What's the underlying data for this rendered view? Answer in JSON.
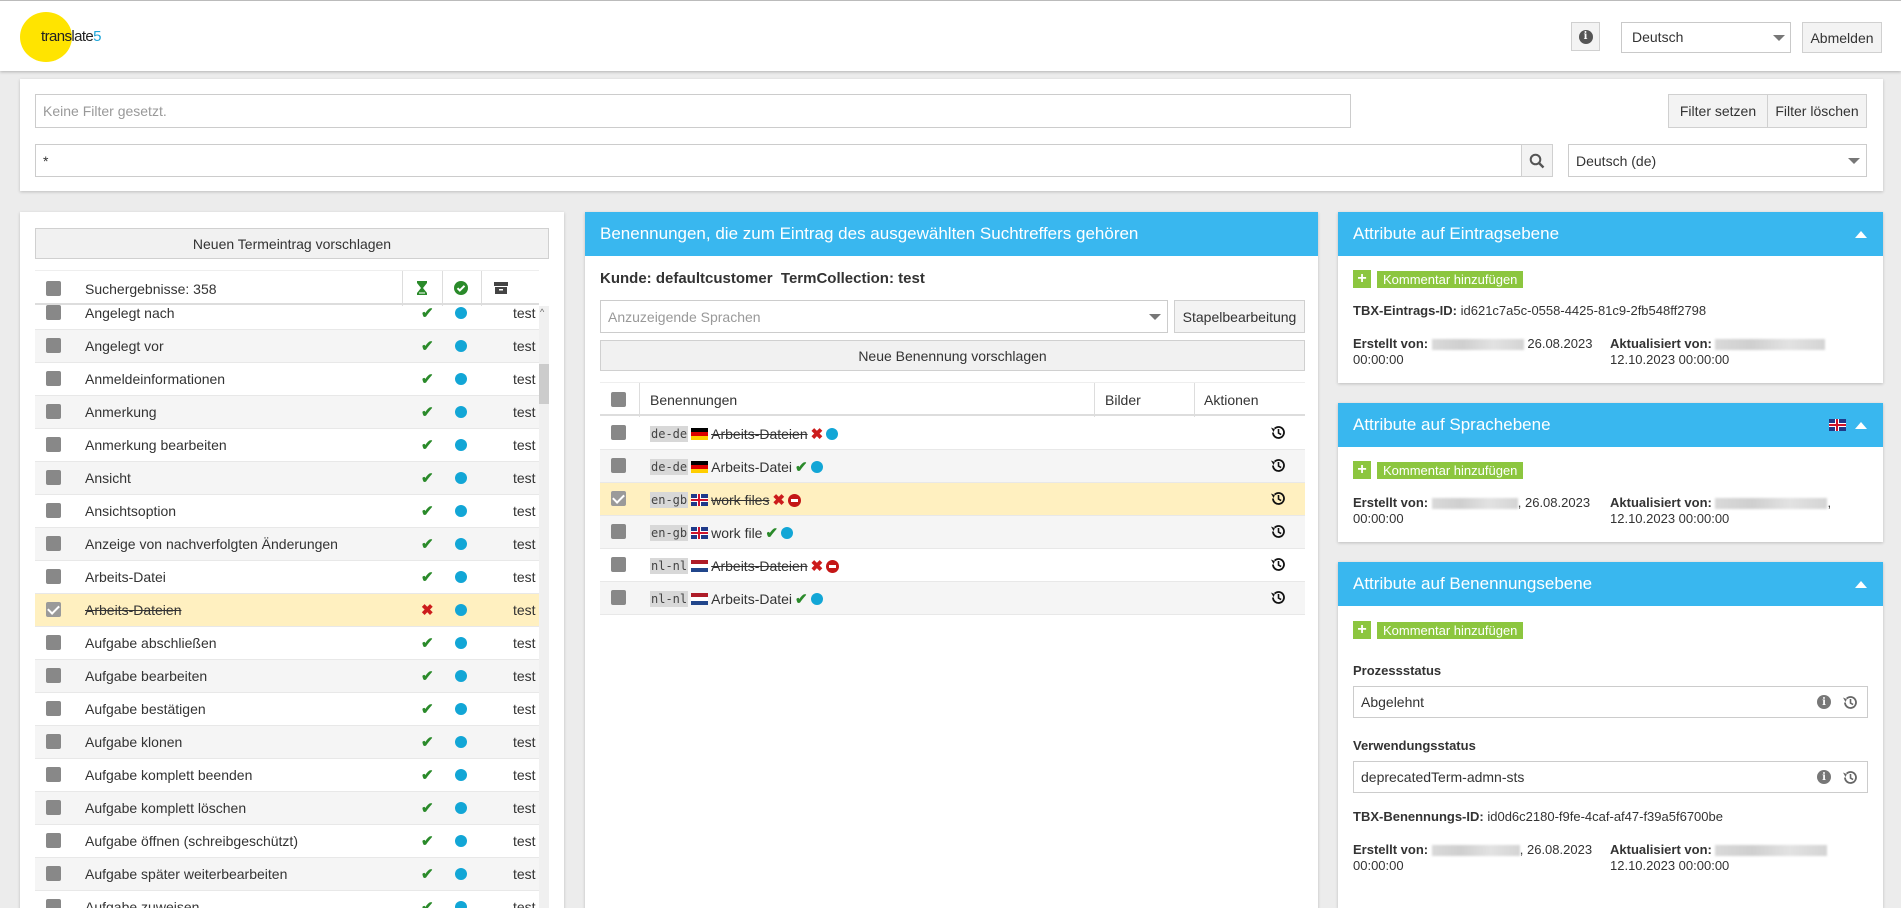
{
  "app": {
    "logo_text": "translate",
    "logo_digit": "5"
  },
  "header": {
    "language": "Deutsch",
    "logout": "Abmelden"
  },
  "filter": {
    "placeholder": "Keine Filter gesetzt.",
    "set_label": "Filter setzen",
    "clear_label": "Filter löschen",
    "search_value": "*",
    "search_lang": "Deutsch (de)"
  },
  "results": {
    "propose_button": "Neuen Termeintrag vorschlagen",
    "header": "Suchergebnisse: 358",
    "rows": [
      {
        "label": "Angelegt nach",
        "status": "ok",
        "coll": "test"
      },
      {
        "label": "Angelegt vor",
        "status": "ok",
        "coll": "test"
      },
      {
        "label": "Anmeldeinformationen",
        "status": "ok",
        "coll": "test"
      },
      {
        "label": "Anmerkung",
        "status": "ok",
        "coll": "test"
      },
      {
        "label": "Anmerkung bearbeiten",
        "status": "ok",
        "coll": "test"
      },
      {
        "label": "Ansicht",
        "status": "ok",
        "coll": "test"
      },
      {
        "label": "Ansichtsoption",
        "status": "ok",
        "coll": "test"
      },
      {
        "label": "Anzeige von nachverfolgten Änderungen",
        "status": "ok",
        "coll": "test"
      },
      {
        "label": "Arbeits-Datei",
        "status": "ok",
        "coll": "test"
      },
      {
        "label": "Arbeits-Dateien",
        "status": "rejected",
        "coll": "test"
      },
      {
        "label": "Aufgabe abschließen",
        "status": "ok",
        "coll": "test"
      },
      {
        "label": "Aufgabe bearbeiten",
        "status": "ok",
        "coll": "test"
      },
      {
        "label": "Aufgabe bestätigen",
        "status": "ok",
        "coll": "test"
      },
      {
        "label": "Aufgabe klonen",
        "status": "ok",
        "coll": "test"
      },
      {
        "label": "Aufgabe komplett beenden",
        "status": "ok",
        "coll": "test"
      },
      {
        "label": "Aufgabe komplett löschen",
        "status": "ok",
        "coll": "test"
      },
      {
        "label": "Aufgabe öffnen (schreibgeschützt)",
        "status": "ok",
        "coll": "test"
      },
      {
        "label": "Aufgabe später weiterbearbeiten",
        "status": "ok",
        "coll": "test"
      },
      {
        "label": "Aufgabe zuweisen",
        "status": "ok",
        "coll": "test"
      }
    ]
  },
  "terms": {
    "title": "Benennungen, die zum Eintrag des ausgewählten Suchtreffers gehören",
    "customer_label": "Kunde:",
    "customer": "defaultcustomer",
    "collection_label": "TermCollection:",
    "collection": "test",
    "lang_placeholder": "Anzuzeigende Sprachen",
    "batch_label": "Stapelbearbeitung",
    "propose_button": "Neue Benennung vorschlagen",
    "col_terms": "Benennungen",
    "col_images": "Bilder",
    "col_actions": "Aktionen",
    "rows": [
      {
        "lang": "de-de",
        "flag": "de",
        "term": "Arbeits-Dateien",
        "rejected": true
      },
      {
        "lang": "de-de",
        "flag": "de",
        "term": "Arbeits-Datei",
        "rejected": false
      },
      {
        "lang": "en-gb",
        "flag": "gb",
        "term": "work files",
        "rejected": true
      },
      {
        "lang": "en-gb",
        "flag": "gb",
        "term": "work file",
        "rejected": false
      },
      {
        "lang": "nl-nl",
        "flag": "nl",
        "term": "Arbeits-Dateien",
        "rejected": true
      },
      {
        "lang": "nl-nl",
        "flag": "nl",
        "term": "Arbeits-Datei",
        "rejected": false
      }
    ]
  },
  "entry_attrs": {
    "title": "Attribute auf Eintragsebene",
    "add_comment": "Kommentar hinzufügen",
    "id_label": "TBX-Eintrags-ID:",
    "id_value": "id621c7a5c-0558-4425-81c9-2fb548ff2798",
    "created_label": "Erstellt von:",
    "created_date": "26.08.2023",
    "created_time": "00:00:00",
    "updated_label": "Aktualisiert von:",
    "updated_date": "12.10.2023 00:00:00"
  },
  "lang_attrs": {
    "title": "Attribute auf Sprachebene",
    "add_comment": "Kommentar hinzufügen",
    "created_label": "Erstellt von:",
    "created_date": "26.08.2023",
    "created_time": "00:00:00",
    "updated_label": "Aktualisiert von:",
    "updated_date": "12.10.2023 00:00:00"
  },
  "term_attrs": {
    "title": "Attribute auf Benennungsebene",
    "add_comment": "Kommentar hinzufügen",
    "process_label": "Prozessstatus",
    "process_value": "Abgelehnt",
    "usage_label": "Verwendungsstatus",
    "usage_value": "deprecatedTerm-admn-sts",
    "id_label": "TBX-Benennungs-ID:",
    "id_value": "id0d6c2180-f9fe-4caf-af47-f39a5f6700be",
    "created_label": "Erstellt von:",
    "created_date": "26.08.2023",
    "created_time": "00:00:00",
    "updated_label": "Aktualisiert von:",
    "updated_date": "12.10.2023 00:00:00"
  }
}
